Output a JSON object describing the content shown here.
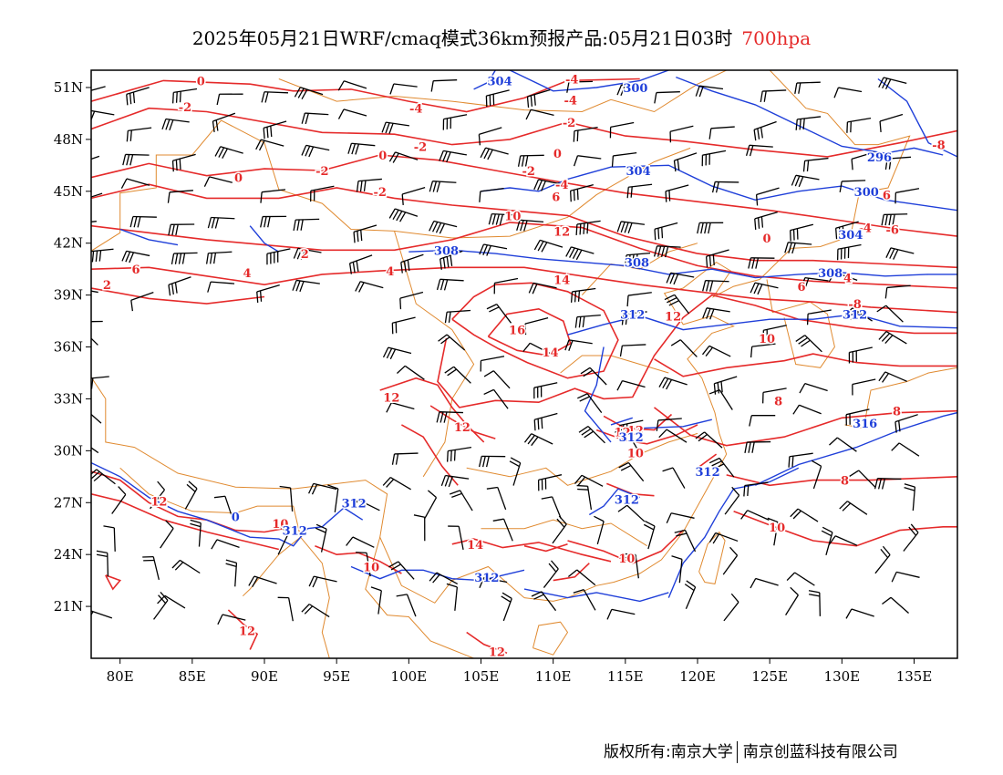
{
  "title": {
    "main": "2025年05月21日WRF/cmaq模式36km预报产品:05月21日03时",
    "level": "700hpa"
  },
  "colors": {
    "temperature": "#e52a2a",
    "height": "#1f3fd9",
    "border": "#e08a30",
    "wind": "#000000"
  },
  "axes": {
    "lon_range": [
      78,
      138
    ],
    "lat_range": [
      18,
      52
    ],
    "lon_ticks": [
      "80E",
      "85E",
      "90E",
      "95E",
      "100E",
      "105E",
      "110E",
      "115E",
      "120E",
      "125E",
      "130E",
      "135E"
    ],
    "lat_ticks": [
      "51N",
      "48N",
      "45N",
      "42N",
      "39N",
      "36N",
      "33N",
      "30N",
      "27N",
      "24N",
      "21N"
    ]
  },
  "temp_labels": [
    {
      "t": "0",
      "lon": 85.6,
      "lat": 51.4
    },
    {
      "t": "-2",
      "lon": 84.5,
      "lat": 49.9
    },
    {
      "t": "0",
      "lon": 88.2,
      "lat": 45.8
    },
    {
      "t": "-2",
      "lon": 94.0,
      "lat": 46.2
    },
    {
      "t": "0",
      "lon": 98.2,
      "lat": 47.1
    },
    {
      "t": "-4",
      "lon": 100.5,
      "lat": 49.8
    },
    {
      "t": "-2",
      "lon": 100.8,
      "lat": 47.6
    },
    {
      "t": "-2",
      "lon": 98.0,
      "lat": 45.0
    },
    {
      "t": "-4",
      "lon": 111.3,
      "lat": 51.5
    },
    {
      "t": "-4",
      "lon": 111.2,
      "lat": 50.3
    },
    {
      "t": "-2",
      "lon": 111.1,
      "lat": 49.0
    },
    {
      "t": "0",
      "lon": 110.3,
      "lat": 47.2
    },
    {
      "t": "-2",
      "lon": 108.3,
      "lat": 46.2
    },
    {
      "t": "-4",
      "lon": 110.6,
      "lat": 45.4
    },
    {
      "t": "6",
      "lon": 110.2,
      "lat": 44.7
    },
    {
      "t": "10",
      "lon": 107.2,
      "lat": 43.6
    },
    {
      "t": "12",
      "lon": 110.6,
      "lat": 42.7
    },
    {
      "t": "14",
      "lon": 110.6,
      "lat": 39.9
    },
    {
      "t": "16",
      "lon": 107.5,
      "lat": 37.0
    },
    {
      "t": "14",
      "lon": 109.8,
      "lat": 35.7
    },
    {
      "t": "12",
      "lon": 98.8,
      "lat": 33.1
    },
    {
      "t": "12",
      "lon": 103.7,
      "lat": 31.4
    },
    {
      "t": "12",
      "lon": 118.3,
      "lat": 37.8
    },
    {
      "t": "12",
      "lon": 115.7,
      "lat": 31.2
    },
    {
      "t": "10",
      "lon": 115.7,
      "lat": 29.9
    },
    {
      "t": "14",
      "lon": 104.6,
      "lat": 24.6
    },
    {
      "t": "12",
      "lon": 82.7,
      "lat": 27.1
    },
    {
      "t": "10",
      "lon": 91.1,
      "lat": 25.8
    },
    {
      "t": "10",
      "lon": 97.4,
      "lat": 23.3
    },
    {
      "t": "12",
      "lon": 88.8,
      "lat": 19.6
    },
    {
      "t": "12",
      "lon": 106.1,
      "lat": 18.4
    },
    {
      "t": "10",
      "lon": 115.1,
      "lat": 23.8
    },
    {
      "t": "2",
      "lon": 79.1,
      "lat": 39.6
    },
    {
      "t": "6",
      "lon": 81.1,
      "lat": 40.5
    },
    {
      "t": "4",
      "lon": 88.8,
      "lat": 40.3
    },
    {
      "t": "2",
      "lon": 92.8,
      "lat": 41.4
    },
    {
      "t": "4",
      "lon": 98.7,
      "lat": 40.4
    },
    {
      "t": "10",
      "lon": 124.8,
      "lat": 36.5
    },
    {
      "t": "8",
      "lon": 125.6,
      "lat": 32.9
    },
    {
      "t": "8",
      "lon": 133.8,
      "lat": 32.3
    },
    {
      "t": "8",
      "lon": 130.2,
      "lat": 28.3
    },
    {
      "t": "10",
      "lon": 125.5,
      "lat": 25.6
    },
    {
      "t": "6",
      "lon": 133.1,
      "lat": 44.8
    },
    {
      "t": "-4",
      "lon": 131.6,
      "lat": 42.9
    },
    {
      "t": "0",
      "lon": 124.8,
      "lat": 42.3
    },
    {
      "t": "-8",
      "lon": 130.9,
      "lat": 38.5
    },
    {
      "t": "6",
      "lon": 127.2,
      "lat": 39.5
    },
    {
      "t": "4",
      "lon": 130.4,
      "lat": 40.0
    },
    {
      "t": "-6",
      "lon": 133.5,
      "lat": 42.8
    },
    {
      "t": "-8",
      "lon": 136.7,
      "lat": 47.7
    },
    {
      "t": "12",
      "lon": 114.8,
      "lat": 31.1
    }
  ],
  "height_labels": [
    {
      "t": "304",
      "lon": 106.3,
      "lat": 51.4
    },
    {
      "t": "300",
      "lon": 115.7,
      "lat": 51.0
    },
    {
      "t": "304",
      "lon": 115.9,
      "lat": 46.2
    },
    {
      "t": "296",
      "lon": 132.6,
      "lat": 47.0
    },
    {
      "t": "300",
      "lon": 131.7,
      "lat": 45.0
    },
    {
      "t": "304",
      "lon": 130.6,
      "lat": 42.5
    },
    {
      "t": "308",
      "lon": 102.6,
      "lat": 41.6
    },
    {
      "t": "308",
      "lon": 115.8,
      "lat": 40.9
    },
    {
      "t": "308",
      "lon": 129.2,
      "lat": 40.3
    },
    {
      "t": "312",
      "lon": 115.5,
      "lat": 37.9
    },
    {
      "t": "312",
      "lon": 130.9,
      "lat": 37.9
    },
    {
      "t": "316",
      "lon": 131.6,
      "lat": 31.6
    },
    {
      "t": "312",
      "lon": 115.4,
      "lat": 30.8
    },
    {
      "t": "312",
      "lon": 120.7,
      "lat": 28.8
    },
    {
      "t": "312",
      "lon": 115.1,
      "lat": 27.2
    },
    {
      "t": "312",
      "lon": 96.2,
      "lat": 27.0
    },
    {
      "t": "312",
      "lon": 92.1,
      "lat": 25.4
    },
    {
      "t": "312",
      "lon": 105.4,
      "lat": 22.7
    },
    {
      "t": "0",
      "lon": 88.0,
      "lat": 26.2
    }
  ],
  "footer": {
    "left": "版权所有:南京大学",
    "right": "南京创蓝科技有限公司"
  }
}
